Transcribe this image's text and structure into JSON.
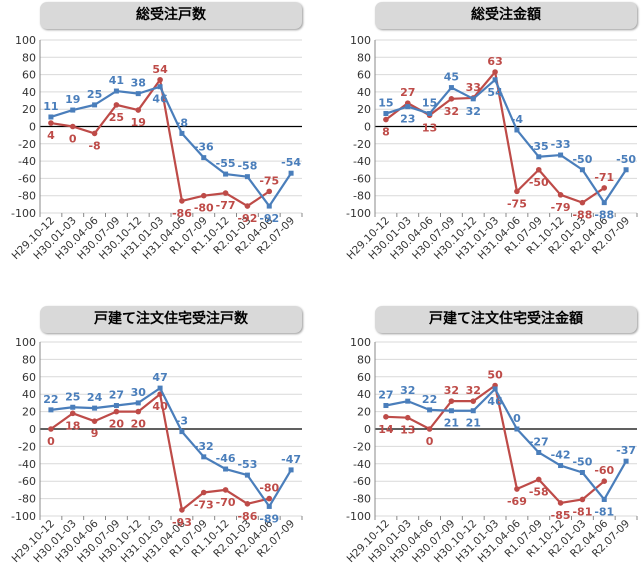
{
  "colors": {
    "blue": "#4a7ebb",
    "red": "#be4b48",
    "grid": "#d9d9d9",
    "axis": "#000000"
  },
  "chart_data": [
    {
      "type": "line",
      "title": "総受注戸数",
      "categories": [
        "H29.10-12",
        "H30.01-03",
        "H30.04-06",
        "H30.07-09",
        "H30.10-12",
        "H31.01-03",
        "H31.04-06",
        "R1.07-09",
        "R1.10-12",
        "R2.01-03",
        "R2.04-06",
        "R2.07-09"
      ],
      "ylim": [
        -100,
        100
      ],
      "yticks": [
        100,
        80,
        60,
        40,
        20,
        0,
        -20,
        -40,
        -60,
        -80,
        -100
      ],
      "series": [
        {
          "color": "blue",
          "values": [
            11,
            19,
            25,
            41,
            38,
            46,
            -8,
            -36,
            -55,
            -58,
            -92,
            -54
          ],
          "labels": [
            "11",
            "19",
            "25",
            "41",
            "38",
            "46",
            "-8",
            "-36",
            "-55",
            "-58",
            "-92",
            "-54"
          ]
        },
        {
          "color": "red",
          "values": [
            4,
            0,
            -8,
            25,
            19,
            54,
            -86,
            -80,
            -77,
            -92,
            -75,
            null
          ],
          "labels": [
            "4",
            "0",
            "-8",
            "25",
            "19",
            "54",
            "-86",
            "-80",
            "-77",
            "-92",
            "-75",
            ""
          ]
        }
      ]
    },
    {
      "type": "line",
      "title": "総受注金額",
      "categories": [
        "H29.10-12",
        "H30.01-03",
        "H30.04-06",
        "H30.07-09",
        "H30.10-12",
        "H31.01-03",
        "H31.04-06",
        "R1.07-09",
        "R1.10-12",
        "R2.01-03",
        "R2.04-06",
        "R2.07-09"
      ],
      "ylim": [
        -100,
        100
      ],
      "yticks": [
        100,
        80,
        60,
        40,
        20,
        0,
        -20,
        -40,
        -60,
        -80,
        -100
      ],
      "series": [
        {
          "color": "blue",
          "values": [
            15,
            23,
            15,
            45,
            32,
            54,
            -4,
            -35,
            -33,
            -50,
            -88,
            -50
          ],
          "labels": [
            "15",
            "23",
            "15",
            "45",
            "32",
            "54",
            "-4",
            "-35",
            "-33",
            "-50",
            "-88",
            "-50"
          ]
        },
        {
          "color": "red",
          "values": [
            8,
            27,
            13,
            32,
            33,
            63,
            -75,
            -50,
            -79,
            -88,
            -71,
            null
          ],
          "labels": [
            "8",
            "27",
            "13",
            "32",
            "33",
            "63",
            "-75",
            "-50",
            "-79",
            "-88",
            "-71",
            ""
          ]
        }
      ]
    },
    {
      "type": "line",
      "title": "戸建て注文住宅受注戸数",
      "categories": [
        "H29.10-12",
        "H30.01-03",
        "H30.04-06",
        "H30.07-09",
        "H30.10-12",
        "H31.01-03",
        "H31.04-06",
        "R1.07-09",
        "R1.10-12",
        "R2.01-03",
        "R2.04-06",
        "R2.07-09"
      ],
      "ylim": [
        -100,
        100
      ],
      "yticks": [
        100,
        80,
        60,
        40,
        20,
        0,
        -20,
        -40,
        -60,
        -80,
        -100
      ],
      "series": [
        {
          "color": "blue",
          "values": [
            22,
            25,
            24,
            27,
            30,
            47,
            -3,
            -32,
            -46,
            -53,
            -89,
            -47
          ],
          "labels": [
            "22",
            "25",
            "24",
            "27",
            "30",
            "47",
            "-3",
            "-32",
            "-46",
            "-53",
            "-89",
            "-47"
          ]
        },
        {
          "color": "red",
          "values": [
            0,
            18,
            9,
            20,
            20,
            40,
            -93,
            -73,
            -70,
            -86,
            -80,
            null
          ],
          "labels": [
            "0",
            "18",
            "9",
            "20",
            "20",
            "40",
            "-93",
            "-73",
            "-70",
            "-86",
            "-80",
            ""
          ]
        }
      ]
    },
    {
      "type": "line",
      "title": "戸建て注文住宅受注金額",
      "categories": [
        "H29.10-12",
        "H30.01-03",
        "H30.04-06",
        "H30.07-09",
        "H30.10-12",
        "H31.01-03",
        "H31.04-06",
        "R1.07-09",
        "R1.10-12",
        "R2.01-03",
        "R2.04-06",
        "R2.07-09"
      ],
      "ylim": [
        -100,
        100
      ],
      "yticks": [
        100,
        80,
        60,
        40,
        20,
        0,
        -20,
        -40,
        -60,
        -80,
        -100
      ],
      "series": [
        {
          "color": "blue",
          "values": [
            27,
            32,
            22,
            21,
            21,
            46,
            0,
            -27,
            -42,
            -50,
            -81,
            -37
          ],
          "labels": [
            "27",
            "32",
            "22",
            "21",
            "21",
            "46",
            "0",
            "-27",
            "-42",
            "-50",
            "-81",
            "-37"
          ]
        },
        {
          "color": "red",
          "values": [
            14,
            13,
            0,
            32,
            32,
            50,
            -69,
            -58,
            -85,
            -81,
            -60,
            null
          ],
          "labels": [
            "14",
            "13",
            "0",
            "32",
            "32",
            "50",
            "-69",
            "-58",
            "-85",
            "-81",
            "-60",
            ""
          ]
        }
      ]
    }
  ]
}
